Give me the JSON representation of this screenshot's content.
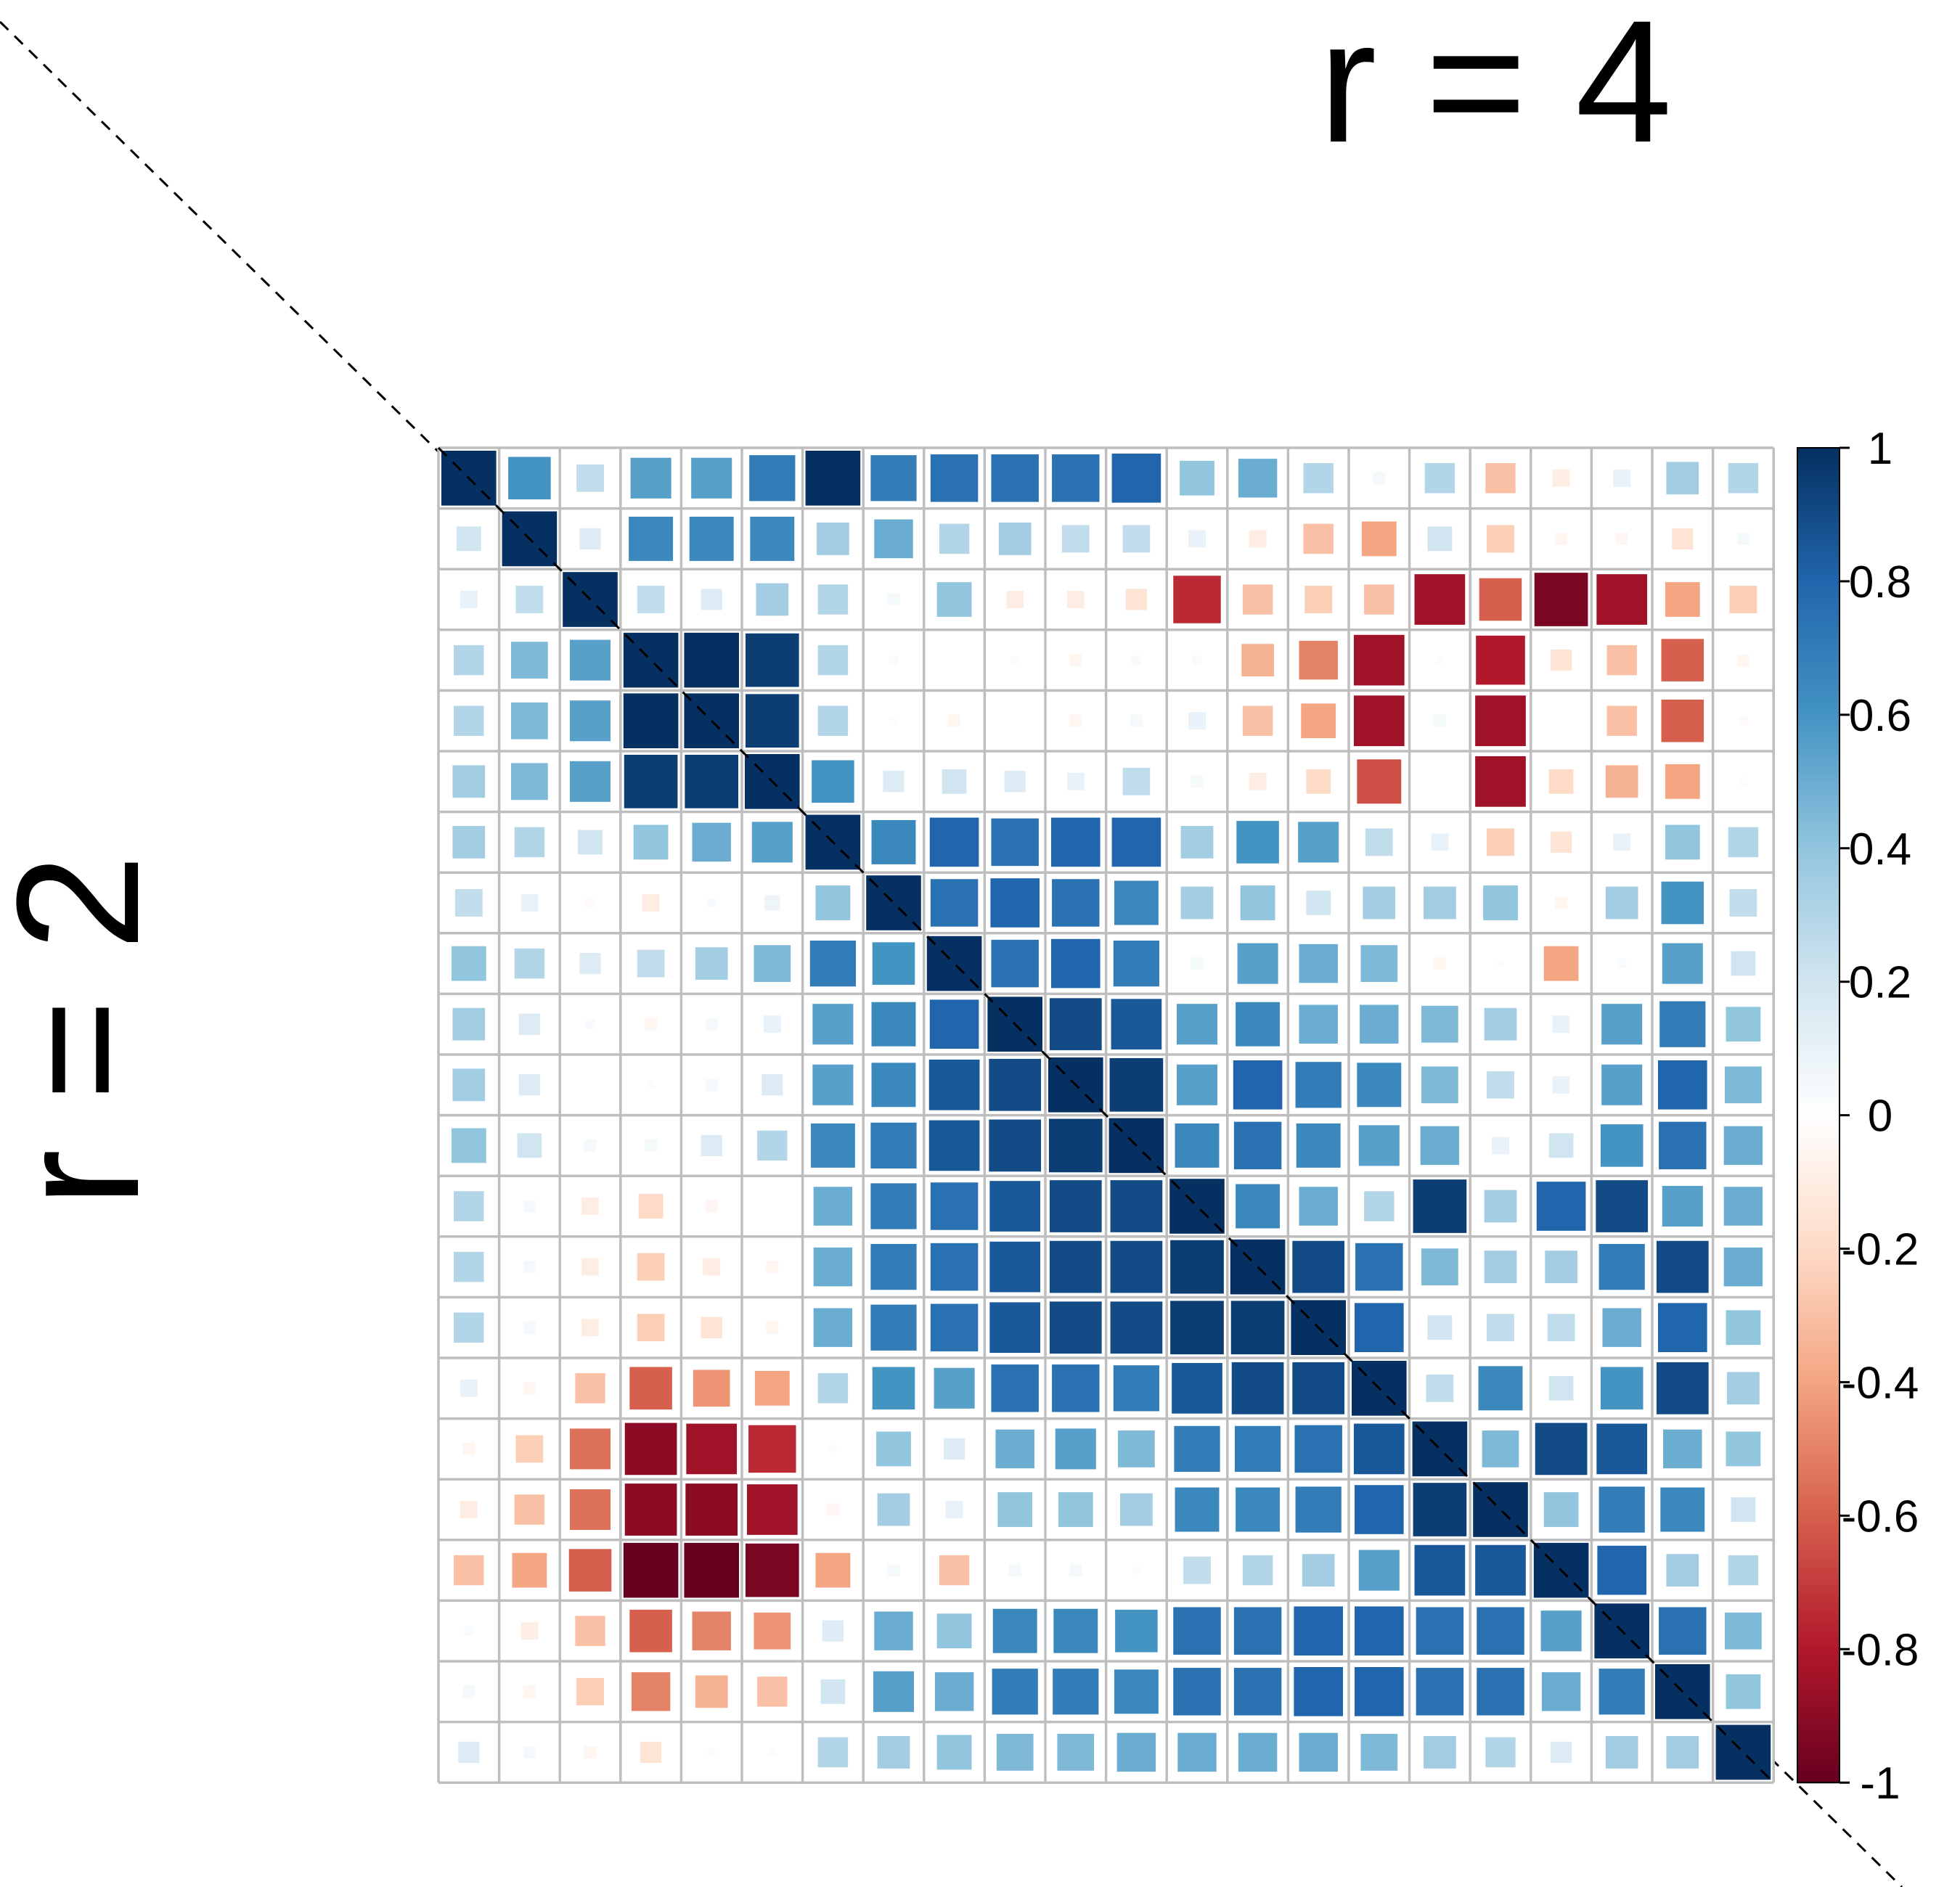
{
  "chart_data": {
    "type": "heatmap",
    "title": "",
    "top_label": "r = 4",
    "left_label": "r = 2",
    "size": 22,
    "scale": [
      -1,
      1
    ],
    "colorbar_ticks": [
      "1",
      "0.8",
      "0.6",
      "0.4",
      "0.2",
      "0",
      "-0.2",
      "-0.4",
      "-0.6",
      "-0.8",
      "-1"
    ],
    "colorbar_values": [
      1,
      0.8,
      0.6,
      0.4,
      0.2,
      0,
      -0.2,
      -0.4,
      -0.6,
      -0.8,
      -1
    ],
    "palette": [
      "#67001f",
      "#b2182b",
      "#d6604d",
      "#f4a582",
      "#fddbc7",
      "#ffffff",
      "#d1e5f0",
      "#92c5de",
      "#4393c3",
      "#2166ac",
      "#053061"
    ],
    "grid_color": "#bebebe",
    "matrix": [
      [
        1.0,
        0.6,
        0.25,
        0.55,
        0.55,
        0.7,
        1.0,
        0.7,
        0.75,
        0.75,
        0.75,
        0.8,
        0.4,
        0.5,
        0.3,
        0.05,
        0.3,
        -0.3,
        -0.1,
        0.1,
        0.35,
        0.3
      ],
      [
        0.2,
        1.0,
        0.15,
        0.65,
        0.65,
        0.65,
        0.35,
        0.5,
        0.3,
        0.35,
        0.25,
        0.25,
        0.1,
        -0.1,
        -0.3,
        -0.4,
        0.2,
        -0.25,
        -0.05,
        -0.05,
        -0.15,
        0.05
      ],
      [
        0.1,
        0.25,
        1.0,
        0.25,
        0.15,
        0.35,
        0.3,
        0.05,
        0.4,
        -0.1,
        -0.1,
        -0.15,
        -0.75,
        -0.3,
        -0.25,
        -0.3,
        -0.85,
        -0.6,
        -0.95,
        -0.85,
        -0.4,
        -0.25
      ],
      [
        0.3,
        0.45,
        0.55,
        1.0,
        1.0,
        0.95,
        0.3,
        0.03,
        0.0,
        0.02,
        -0.05,
        0.03,
        0.03,
        -0.35,
        -0.5,
        -0.85,
        0.02,
        -0.8,
        -0.15,
        -0.3,
        -0.6,
        -0.05
      ],
      [
        0.3,
        0.45,
        0.55,
        1.0,
        1.0,
        0.95,
        0.3,
        0.02,
        -0.05,
        0.0,
        -0.05,
        0.05,
        0.1,
        -0.3,
        -0.4,
        -0.85,
        0.05,
        -0.85,
        0.0,
        -0.3,
        -0.6,
        -0.03
      ],
      [
        0.35,
        0.45,
        0.55,
        0.95,
        0.95,
        1.0,
        0.6,
        0.15,
        0.2,
        0.15,
        0.1,
        0.25,
        0.05,
        -0.1,
        -0.2,
        -0.65,
        0.0,
        -0.85,
        -0.2,
        -0.35,
        -0.4,
        0.02
      ],
      [
        0.35,
        0.3,
        0.2,
        0.4,
        0.5,
        0.55,
        1.0,
        0.65,
        0.8,
        0.75,
        0.8,
        0.8,
        0.35,
        0.6,
        0.55,
        0.25,
        0.1,
        -0.25,
        -0.15,
        0.1,
        0.4,
        0.3
      ],
      [
        0.25,
        0.1,
        -0.03,
        -0.1,
        0.03,
        0.08,
        0.4,
        1.0,
        0.75,
        0.8,
        0.75,
        0.65,
        0.35,
        0.4,
        0.2,
        0.35,
        0.35,
        0.4,
        -0.05,
        0.35,
        0.6,
        0.25
      ],
      [
        0.4,
        0.3,
        0.15,
        0.25,
        0.35,
        0.45,
        0.7,
        0.6,
        1.0,
        0.75,
        0.8,
        0.7,
        0.05,
        0.55,
        0.5,
        0.45,
        -0.05,
        -0.02,
        -0.4,
        0.03,
        0.55,
        0.2
      ],
      [
        0.35,
        0.15,
        0.03,
        -0.05,
        0.05,
        0.1,
        0.55,
        0.65,
        0.8,
        1.0,
        0.9,
        0.85,
        0.55,
        0.65,
        0.5,
        0.5,
        0.45,
        0.35,
        0.1,
        0.55,
        0.7,
        0.4
      ],
      [
        0.35,
        0.15,
        0.0,
        -0.02,
        0.05,
        0.15,
        0.55,
        0.65,
        0.85,
        0.9,
        1.0,
        0.95,
        0.55,
        0.8,
        0.7,
        0.65,
        0.45,
        0.25,
        0.1,
        0.55,
        0.8,
        0.45
      ],
      [
        0.4,
        0.2,
        0.05,
        0.05,
        0.15,
        0.3,
        0.65,
        0.7,
        0.85,
        0.9,
        0.95,
        1.0,
        0.65,
        0.75,
        0.65,
        0.55,
        0.5,
        0.1,
        0.2,
        0.6,
        0.75,
        0.5
      ],
      [
        0.3,
        0.05,
        -0.1,
        -0.2,
        -0.05,
        0.0,
        0.5,
        0.7,
        0.75,
        0.85,
        0.9,
        0.9,
        1.0,
        0.65,
        0.5,
        0.3,
        0.95,
        0.35,
        0.8,
        0.9,
        0.55,
        0.5
      ],
      [
        0.3,
        0.05,
        -0.1,
        -0.25,
        -0.1,
        -0.05,
        0.5,
        0.7,
        0.75,
        0.85,
        0.9,
        0.9,
        0.95,
        1.0,
        0.9,
        0.75,
        0.45,
        0.35,
        0.35,
        0.7,
        0.9,
        0.5
      ],
      [
        0.3,
        0.05,
        -0.1,
        -0.25,
        -0.15,
        -0.05,
        0.5,
        0.7,
        0.75,
        0.85,
        0.9,
        0.9,
        0.95,
        0.95,
        1.0,
        0.8,
        0.2,
        0.25,
        0.25,
        0.5,
        0.8,
        0.4
      ],
      [
        0.1,
        -0.05,
        -0.3,
        -0.6,
        -0.45,
        -0.4,
        0.3,
        0.6,
        0.55,
        0.75,
        0.75,
        0.7,
        0.85,
        0.9,
        0.9,
        1.0,
        0.25,
        0.65,
        0.2,
        0.6,
        0.9,
        0.35
      ],
      [
        -0.05,
        -0.25,
        -0.55,
        -0.9,
        -0.85,
        -0.75,
        0.02,
        0.4,
        0.15,
        0.5,
        0.55,
        0.45,
        0.7,
        0.7,
        0.75,
        0.85,
        1.0,
        0.45,
        0.9,
        0.85,
        0.5,
        0.4
      ],
      [
        -0.1,
        -0.3,
        -0.55,
        -0.9,
        -0.9,
        -0.85,
        -0.05,
        0.35,
        0.1,
        0.4,
        0.4,
        0.35,
        0.65,
        0.65,
        0.7,
        0.8,
        0.95,
        1.0,
        0.4,
        0.7,
        0.65,
        0.2
      ],
      [
        -0.3,
        -0.4,
        -0.6,
        -1.0,
        -1.0,
        -0.95,
        -0.4,
        0.05,
        -0.3,
        0.05,
        0.05,
        -0.02,
        0.25,
        0.3,
        0.35,
        0.55,
        0.85,
        0.85,
        1.0,
        0.8,
        0.35,
        0.3
      ],
      [
        0.03,
        -0.1,
        -0.3,
        -0.6,
        -0.5,
        -0.45,
        0.15,
        0.5,
        0.4,
        0.65,
        0.65,
        0.6,
        0.75,
        0.75,
        0.8,
        0.8,
        0.75,
        0.75,
        0.55,
        1.0,
        0.75,
        0.45
      ],
      [
        0.05,
        -0.05,
        -0.25,
        -0.5,
        -0.35,
        -0.3,
        0.2,
        0.55,
        0.5,
        0.7,
        0.7,
        0.65,
        0.75,
        0.75,
        0.8,
        0.8,
        0.75,
        0.75,
        0.5,
        0.7,
        1.0,
        0.4
      ],
      [
        0.15,
        0.05,
        -0.05,
        -0.15,
        -0.02,
        0.02,
        0.3,
        0.35,
        0.4,
        0.45,
        0.45,
        0.5,
        0.5,
        0.5,
        0.5,
        0.45,
        0.35,
        0.3,
        0.15,
        0.35,
        0.35,
        1.0
      ]
    ]
  }
}
